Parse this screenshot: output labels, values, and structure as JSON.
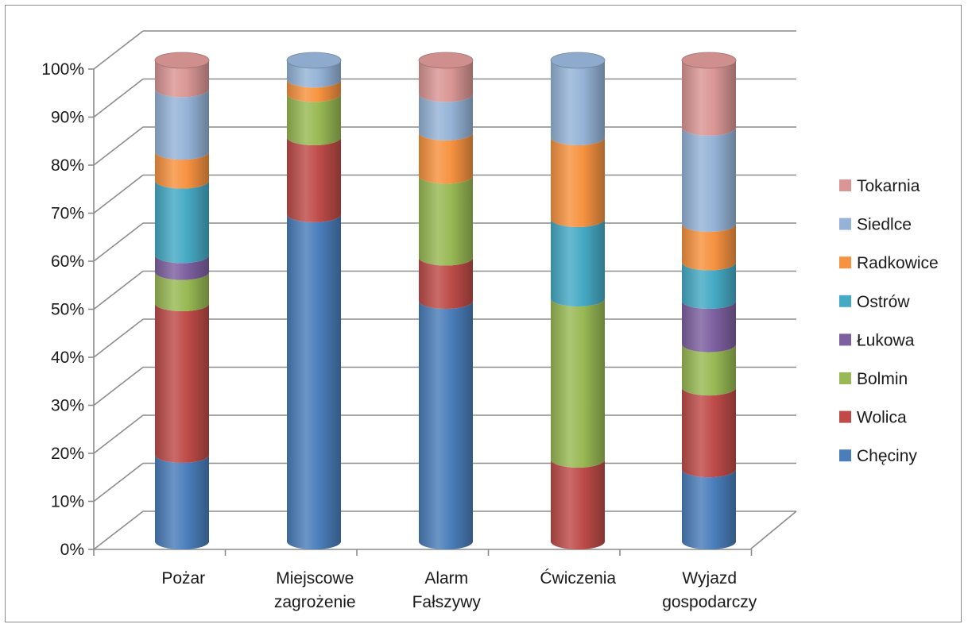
{
  "chart_data": {
    "type": "bar",
    "stacked": "percent",
    "three_d": true,
    "title": "",
    "xlabel": "",
    "ylabel": "",
    "ylim": [
      0,
      100
    ],
    "y_ticks": [
      "0%",
      "10%",
      "20%",
      "30%",
      "40%",
      "50%",
      "60%",
      "70%",
      "80%",
      "90%",
      "100%"
    ],
    "grid": true,
    "legend_position": "right",
    "categories": [
      [
        "Pożar"
      ],
      [
        "Miejscowe",
        "zagrożenie"
      ],
      [
        "Alarm",
        "Fałszywy"
      ],
      [
        "Ćwiczenia"
      ],
      [
        "Wyjazd",
        "gospodarczy"
      ]
    ],
    "series": [
      {
        "name": "Chęciny",
        "color": "#4a7ebb",
        "values": [
          18,
          68,
          50,
          0,
          15
        ]
      },
      {
        "name": "Wolica",
        "color": "#be4b48",
        "values": [
          31.5,
          16,
          9,
          17,
          17
        ]
      },
      {
        "name": "Bolmin",
        "color": "#98b954",
        "values": [
          6.5,
          9,
          17,
          33.5,
          9
        ]
      },
      {
        "name": "Łukowa",
        "color": "#7d60a0",
        "values": [
          3.5,
          0,
          0,
          0,
          9
        ]
      },
      {
        "name": "Ostrów",
        "color": "#46aac5",
        "values": [
          15.5,
          0,
          0,
          16.5,
          8
        ]
      },
      {
        "name": "Radkowice",
        "color": "#f69240",
        "values": [
          6,
          3,
          9,
          17,
          8
        ]
      },
      {
        "name": "Siedlce",
        "color": "#95b3d7",
        "values": [
          13,
          4,
          8,
          16,
          20
        ]
      },
      {
        "name": "Tokarnia",
        "color": "#d99694",
        "values": [
          6,
          0,
          7,
          0,
          14
        ]
      }
    ]
  }
}
